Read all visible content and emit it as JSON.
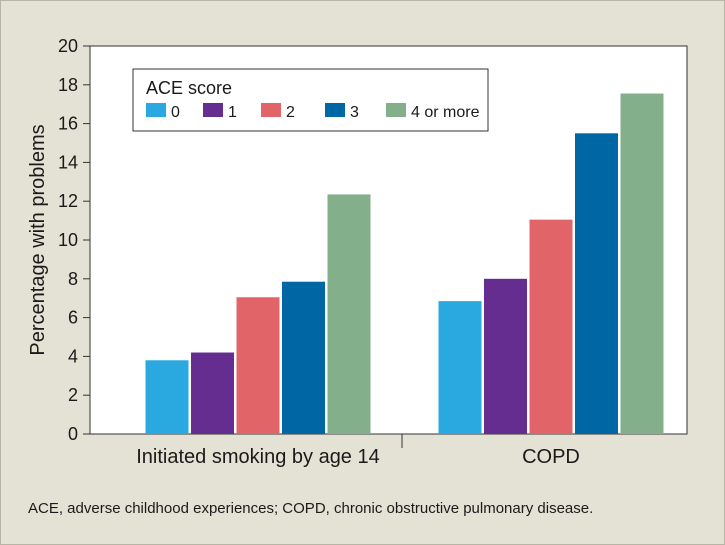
{
  "chart_data": {
    "type": "bar",
    "categories": [
      "Initiated smoking by age 14",
      "COPD"
    ],
    "ylabel": "Percentage with problems",
    "xlabel": "",
    "ylim": [
      0,
      20
    ],
    "yticks": [
      0,
      2,
      4,
      6,
      8,
      10,
      12,
      14,
      16,
      18,
      20
    ],
    "grid": false,
    "legend": {
      "title": "ACE score",
      "placement": "top-left"
    },
    "series": [
      {
        "name": "0",
        "color": "#2aa9e0",
        "values": [
          3.8,
          6.85
        ]
      },
      {
        "name": "1",
        "color": "#662d91",
        "values": [
          4.2,
          8.0
        ]
      },
      {
        "name": "2",
        "color": "#e06468",
        "values": [
          7.05,
          11.05
        ]
      },
      {
        "name": "3",
        "color": "#0067a5",
        "values": [
          7.85,
          15.5
        ]
      },
      {
        "name": "4 or more",
        "color": "#83b08a",
        "values": [
          12.35,
          17.55
        ]
      }
    ]
  },
  "footnote": "ACE, adverse childhood experiences; COPD, chronic obstructive pulmonary disease."
}
